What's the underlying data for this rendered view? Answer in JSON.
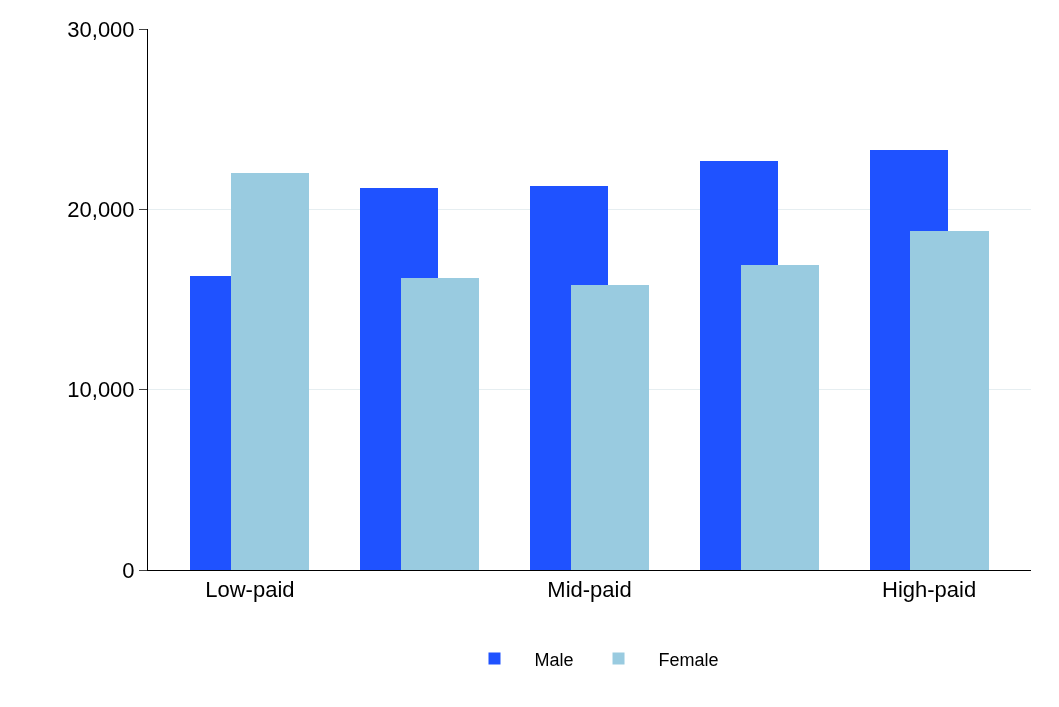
{
  "chart_data": {
    "type": "bar",
    "categories": [
      "Low-paid",
      null,
      "Mid-paid",
      null,
      "High-paid"
    ],
    "series": [
      {
        "name": "Male",
        "color": "#1f52ff",
        "values": [
          16300,
          21200,
          21300,
          22700,
          23300
        ]
      },
      {
        "name": "Female",
        "color": "#99cbe0",
        "values": [
          22000,
          16200,
          15800,
          16900,
          18800
        ]
      }
    ],
    "ylim": [
      0,
      30000
    ],
    "yticks": [
      {
        "value": 0,
        "label": "0"
      },
      {
        "value": 10000,
        "label": "10,000"
      },
      {
        "value": 20000,
        "label": "20,000"
      },
      {
        "value": 30000,
        "label": "30,000"
      }
    ],
    "grid": "y",
    "legend": "bottom"
  }
}
